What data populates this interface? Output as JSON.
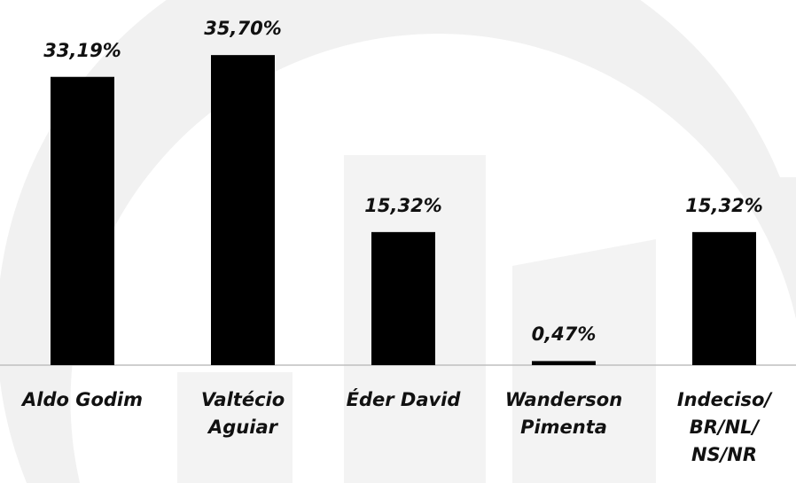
{
  "chart_data": {
    "type": "bar",
    "categories": [
      "Aldo Godim",
      "Valtécio\nAguiar",
      "Éder David",
      "Wanderson\nPimenta",
      "Indeciso/\nBR/NL/\nNS/NR"
    ],
    "values": [
      33.19,
      35.7,
      15.32,
      0.47,
      15.32
    ],
    "value_labels": [
      "33,19%",
      "35,70%",
      "15,32%",
      "0,47%",
      "15,32%"
    ],
    "color": "#000000"
  }
}
